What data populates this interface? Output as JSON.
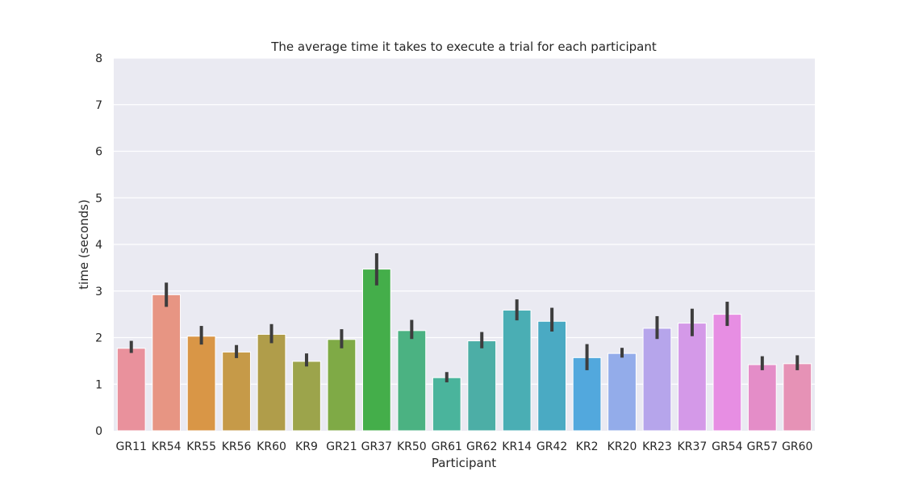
{
  "chart_data": {
    "type": "bar",
    "title": "The average time it takes to execute a trial for each participant",
    "xlabel": "Participant",
    "ylabel": "time (seconds)",
    "ylim": [
      0,
      8
    ],
    "yticks": [
      "0",
      "1",
      "2",
      "3",
      "4",
      "5",
      "6",
      "7",
      "8"
    ],
    "grid": true,
    "categories": [
      "GR11",
      "KR54",
      "KR55",
      "KR56",
      "KR60",
      "KR9",
      "GR21",
      "GR37",
      "KR50",
      "GR61",
      "GR62",
      "KR14",
      "GR42",
      "KR2",
      "KR20",
      "KR23",
      "KR37",
      "GR54",
      "GR57",
      "GR60"
    ],
    "values": [
      1.77,
      2.92,
      2.03,
      1.69,
      2.07,
      1.49,
      1.96,
      3.47,
      2.15,
      1.14,
      1.93,
      2.59,
      2.35,
      1.57,
      1.66,
      2.2,
      2.31,
      2.5,
      1.42,
      1.44
    ],
    "ci_low": [
      1.67,
      2.66,
      1.85,
      1.56,
      1.88,
      1.38,
      1.77,
      3.12,
      1.97,
      1.04,
      1.77,
      2.37,
      2.13,
      1.3,
      1.57,
      1.97,
      2.03,
      2.25,
      1.3,
      1.3
    ],
    "ci_high": [
      1.93,
      3.18,
      2.25,
      1.84,
      2.29,
      1.66,
      2.18,
      3.81,
      2.38,
      1.26,
      2.12,
      2.82,
      2.64,
      1.86,
      1.78,
      2.46,
      2.62,
      2.77,
      1.6,
      1.62
    ],
    "colors": [
      "#e9919c",
      "#e79583",
      "#d99646",
      "#c69a48",
      "#b09d4a",
      "#9ca44b",
      "#7faa46",
      "#44ae4a",
      "#4bb282",
      "#4ab49c",
      "#4caea6",
      "#4aaeb4",
      "#4aaac3",
      "#52a8dd",
      "#93acea",
      "#b6a5eb",
      "#d499e8",
      "#e78ee3",
      "#e48dc8",
      "#e692b6"
    ]
  }
}
